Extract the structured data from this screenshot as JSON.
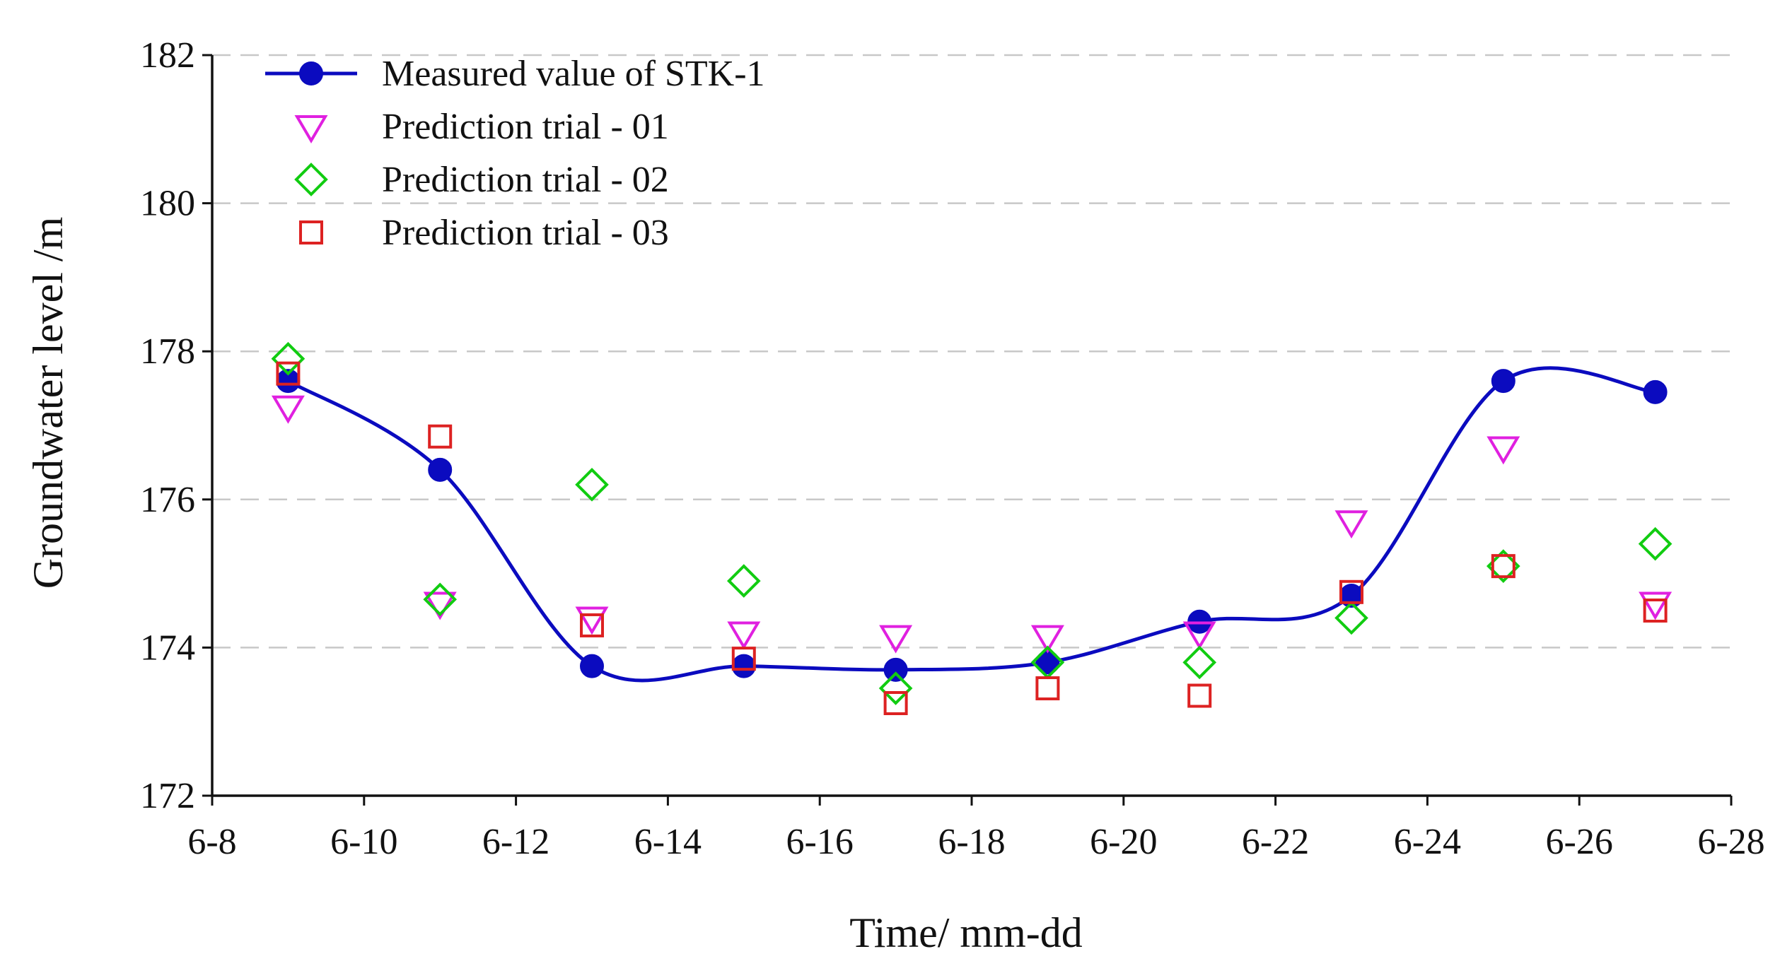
{
  "chart_data": {
    "type": "line",
    "title": "",
    "xlabel": "Time/ mm-dd",
    "ylabel": "Groundwater level /m",
    "x_ticks": [
      "6-8",
      "6-10",
      "6-12",
      "6-14",
      "6-16",
      "6-18",
      "6-20",
      "6-22",
      "6-24",
      "6-26",
      "6-28"
    ],
    "y_ticks": [
      "172",
      "174",
      "176",
      "178",
      "180",
      "182"
    ],
    "xlim": [
      8,
      28
    ],
    "ylim": [
      172,
      182
    ],
    "grid": "horizontal dashed",
    "legend_position": "top-left",
    "x": [
      9,
      11,
      13,
      15,
      17,
      19,
      21,
      23,
      25,
      27
    ],
    "series": [
      {
        "name": "Measured value of  STK-1",
        "marker": "circle",
        "style": "smooth-line",
        "color": "#0b0bbf",
        "values": [
          177.6,
          176.4,
          173.75,
          173.75,
          173.7,
          173.8,
          174.35,
          174.7,
          177.6,
          177.45
        ]
      },
      {
        "name": "Prediction trial - 01",
        "marker": "triangle-down",
        "style": "markers",
        "color": "#e020e0",
        "values": [
          177.25,
          174.6,
          174.4,
          174.2,
          174.15,
          174.15,
          174.2,
          175.7,
          176.7,
          174.6
        ]
      },
      {
        "name": "Prediction trial - 02",
        "marker": "diamond",
        "style": "markers",
        "color": "#11cc11",
        "values": [
          177.9,
          174.65,
          176.2,
          174.9,
          173.45,
          173.8,
          173.8,
          174.4,
          175.1,
          175.4
        ]
      },
      {
        "name": "Prediction trial - 03",
        "marker": "square",
        "style": "markers",
        "color": "#dd2222",
        "values": [
          177.7,
          176.85,
          174.3,
          173.85,
          173.25,
          173.45,
          173.35,
          174.75,
          175.1,
          174.5
        ]
      }
    ]
  }
}
